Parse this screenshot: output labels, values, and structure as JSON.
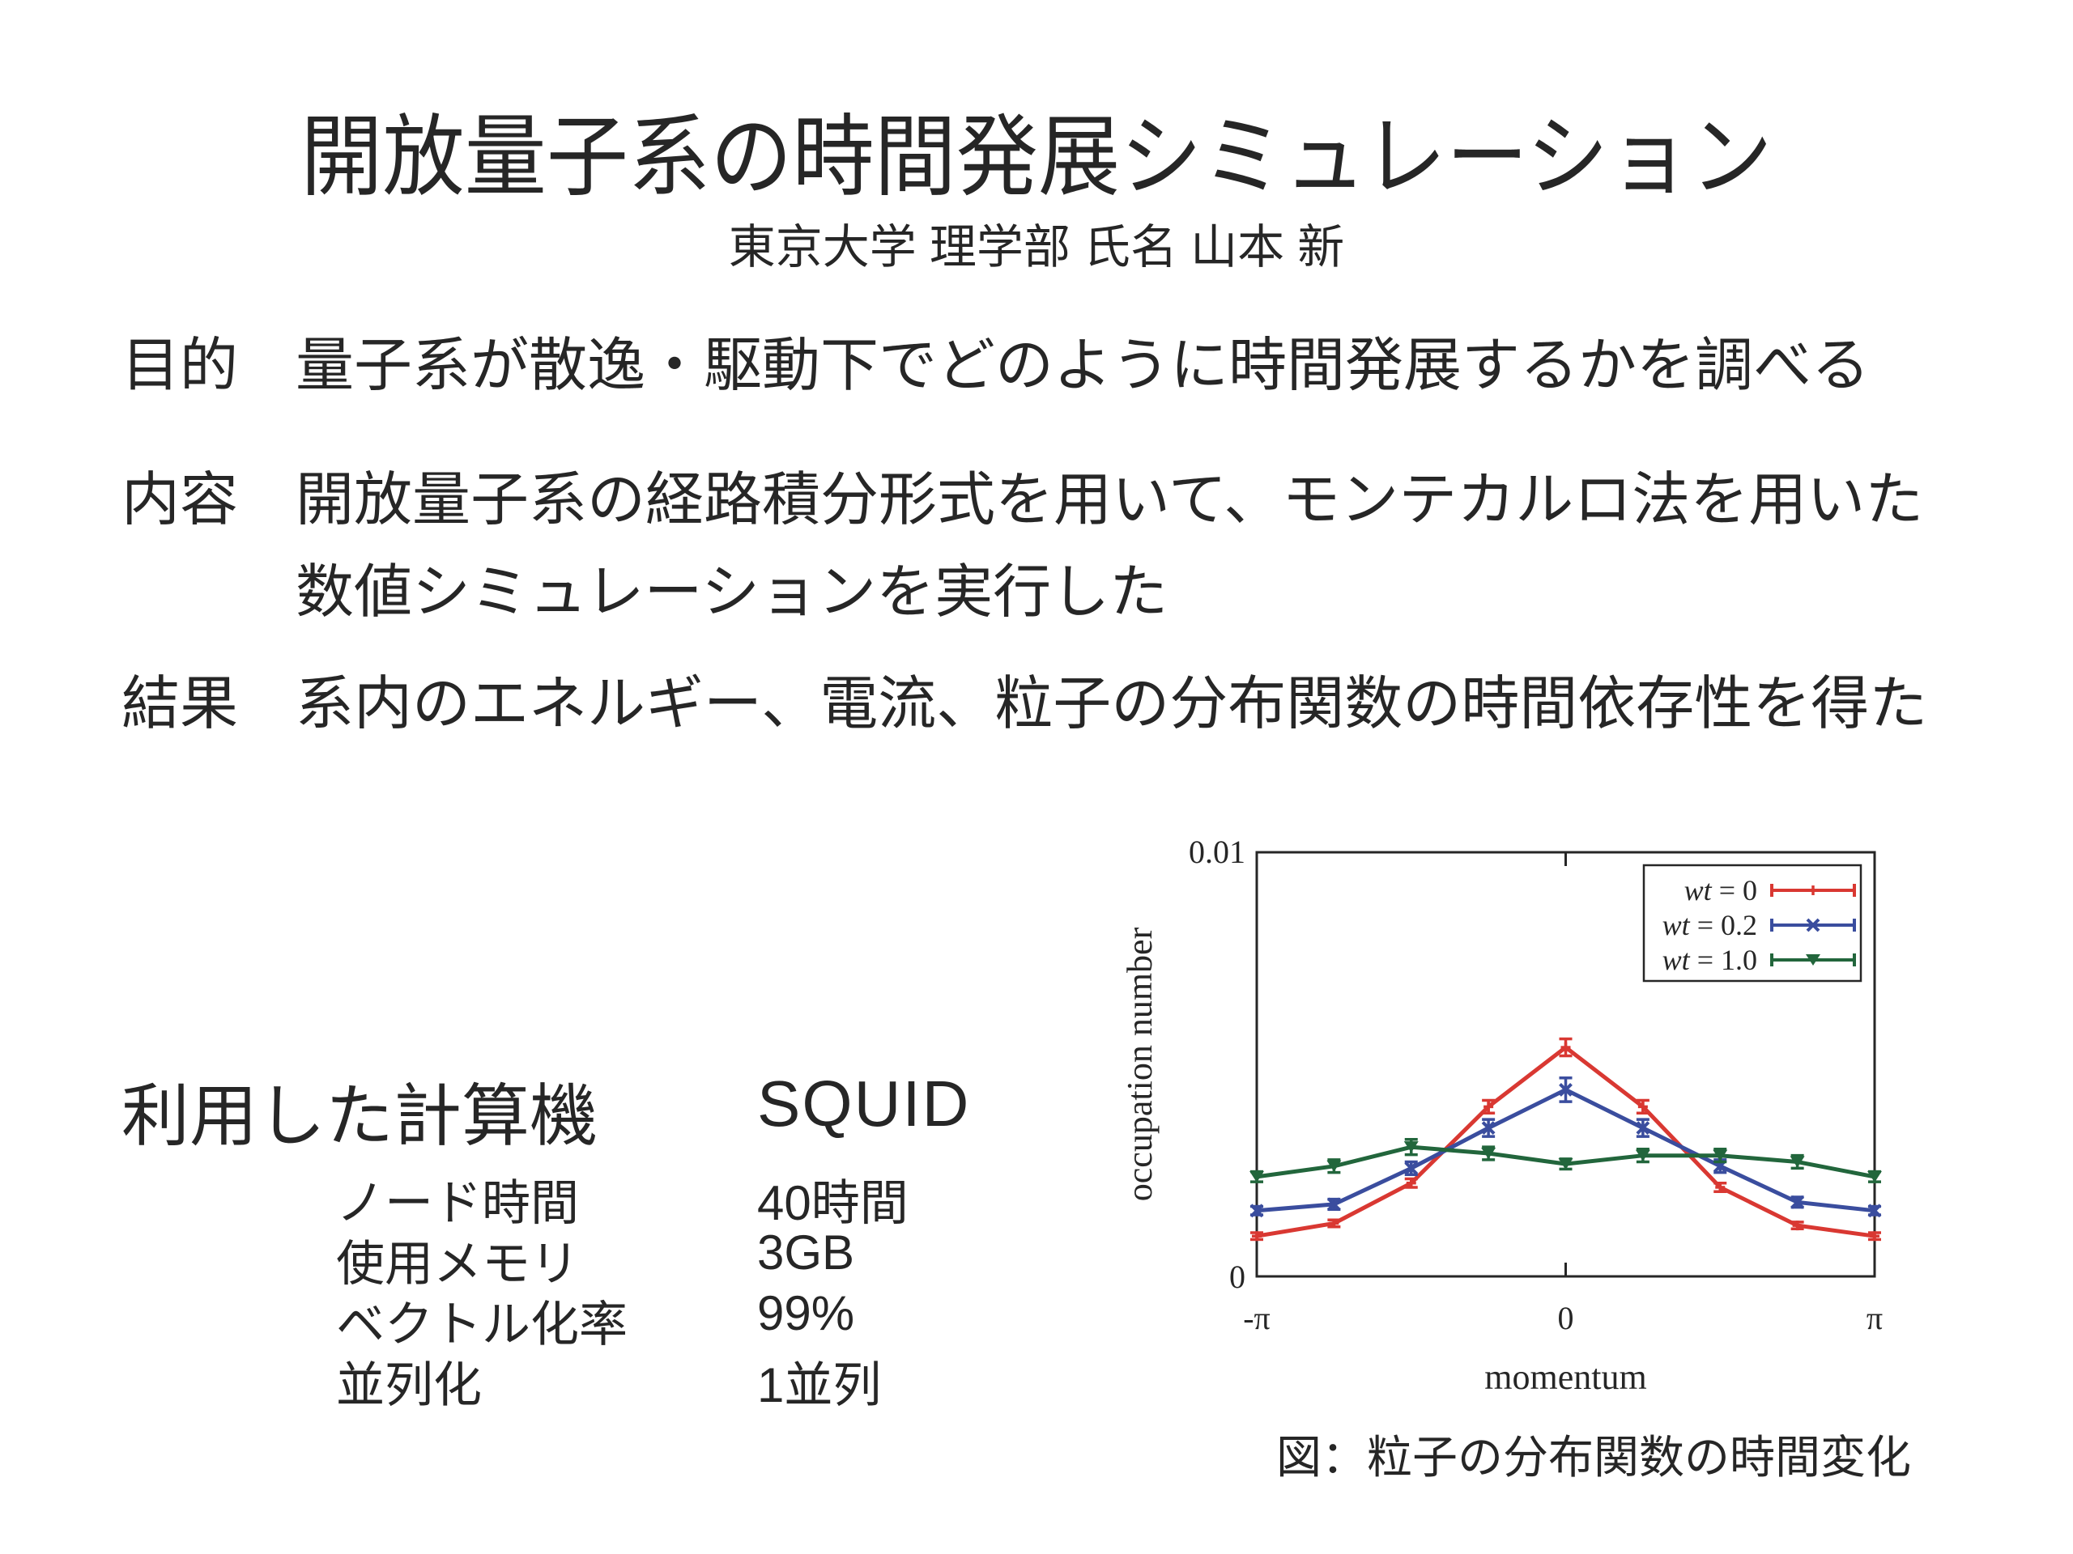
{
  "slide": {
    "title": "開放量子系の時間発展シミュレーション",
    "subtitle": "東京大学 理学部 氏名 山本 新"
  },
  "sections": [
    {
      "label": "目的",
      "lines": [
        "量子系が散逸・駆動下でどのように時間発展するかを調べる"
      ]
    },
    {
      "label": "内容",
      "lines": [
        "開放量子系の経路積分形式を用いて、モンテカルロ法を用いた",
        "数値シミュレーションを実行した"
      ]
    },
    {
      "label": "結果",
      "lines": [
        "系内のエネルギー、電流、粒子の分布関数の時間依存性を得た"
      ]
    }
  ],
  "machine": {
    "heading": "利用した計算機",
    "name": "SQUID",
    "rows": [
      {
        "label": "ノード時間",
        "value": "40時間"
      },
      {
        "label": "使用メモリ",
        "value": "3GB"
      },
      {
        "label": "ベクトル化率",
        "value": "99%"
      },
      {
        "label": "並列化",
        "value": "1並列"
      }
    ]
  },
  "figure": {
    "caption": "図：粒子の分布関数の時間変化",
    "chart_data": {
      "type": "line",
      "xlabel": "momentum",
      "ylabel": "occupation number",
      "ylim": [
        0,
        0.01
      ],
      "y_tick_labels": [
        "0",
        "0.01"
      ],
      "x_tick_labels": [
        "-π",
        "0",
        "π"
      ],
      "x": [
        "-π",
        "-3π/4",
        "-π/2",
        "-π/4",
        "0",
        "π/4",
        "π/2",
        "3π/4",
        "π"
      ],
      "grid": false,
      "legend_position": "top-right",
      "series": [
        {
          "name": "wt = 0",
          "color": "#d93832",
          "marker": "plus",
          "values": [
            0.00095,
            0.00125,
            0.0022,
            0.004,
            0.0054,
            0.004,
            0.0021,
            0.0012,
            0.00095
          ],
          "yerr": [
            8e-05,
            8e-05,
            0.0001,
            0.00015,
            0.0002,
            0.00015,
            0.0001,
            8e-05,
            8e-05
          ]
        },
        {
          "name": "wt = 0.2",
          "color": "#3a4d9e",
          "marker": "x",
          "values": [
            0.00155,
            0.0017,
            0.00255,
            0.0035,
            0.0044,
            0.0035,
            0.0026,
            0.00175,
            0.00155
          ],
          "yerr": [
            0.0001,
            0.00012,
            0.00015,
            0.0002,
            0.00028,
            0.0002,
            0.00015,
            0.00012,
            0.0001
          ]
        },
        {
          "name": "wt = 1.0",
          "color": "#22663c",
          "marker": "triangle-down",
          "values": [
            0.00235,
            0.0026,
            0.00305,
            0.0029,
            0.00265,
            0.00285,
            0.00285,
            0.0027,
            0.00235
          ],
          "yerr": [
            0.00012,
            0.00015,
            0.00018,
            0.00015,
            0.00012,
            0.00015,
            0.00015,
            0.00015,
            0.00012
          ]
        }
      ]
    }
  }
}
